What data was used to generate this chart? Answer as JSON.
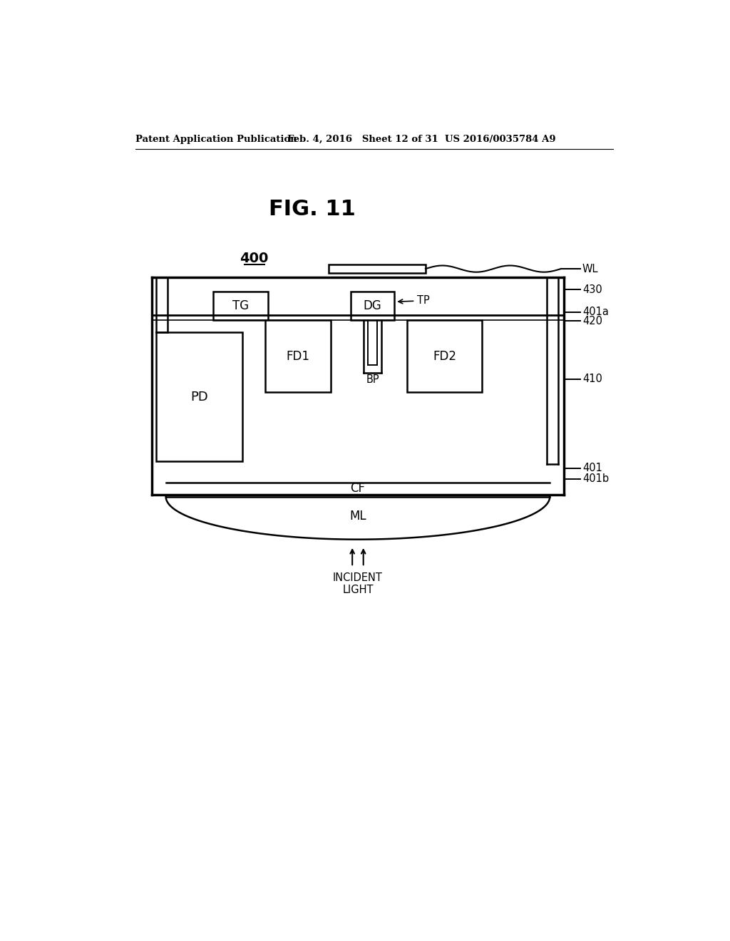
{
  "fig_title": "FIG. 11",
  "patent_header_left": "Patent Application Publication",
  "patent_header_mid": "Feb. 4, 2016   Sheet 12 of 31",
  "patent_header_right": "US 2016/0035784 A9",
  "label_400": "400",
  "label_WL": "WL",
  "label_430": "430",
  "label_401a": "401a",
  "label_420": "420",
  "label_410": "410",
  "label_401": "401",
  "label_401b": "401b",
  "label_TG": "TG",
  "label_DG": "DG",
  "label_TP": "TP",
  "label_FD1": "FD1",
  "label_FD2": "FD2",
  "label_BP": "BP",
  "label_PD": "PD",
  "label_CF": "CF",
  "label_ML": "ML",
  "label_incident": "INCIDENT\nLIGHT",
  "bg_color": "#ffffff",
  "line_color": "#000000"
}
